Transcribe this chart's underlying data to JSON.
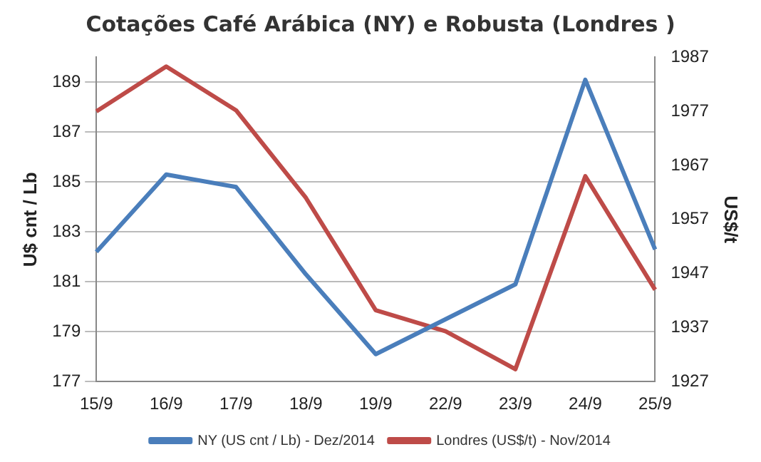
{
  "chart_data": {
    "type": "line",
    "title": "Cotações Café Arábica (NY) e Robusta (Londres )",
    "categories": [
      "15/9",
      "16/9",
      "17/9",
      "18/9",
      "19/9",
      "22/9",
      "23/9",
      "24/9",
      "25/9"
    ],
    "series": [
      {
        "name": "NY (US cnt / Lb) - Dez/2014",
        "color": "#4a7ebb",
        "values": [
          182.2,
          185.3,
          184.8,
          181.3,
          178.1,
          179.5,
          180.9,
          189.1,
          182.3
        ]
      },
      {
        "name": "Londres (US$/t) - Nov/2014",
        "color": "#be4b48",
        "axis": "y2",
        "values": [
          1977,
          1985.3,
          1977.2,
          1961,
          1940.2,
          1936.3,
          1929.3,
          1965,
          1944
        ]
      }
    ],
    "ylabel": "U$ cnt / Lb",
    "y2label": "US$/t",
    "ylim": [
      177,
      190
    ],
    "yticks": [
      177,
      179,
      181,
      183,
      185,
      187,
      189
    ],
    "y2lim": [
      1927,
      1987
    ],
    "y2ticks": [
      1927,
      1937,
      1947,
      1957,
      1967,
      1977,
      1987
    ],
    "grid": "y",
    "legend": "bottom",
    "marker": "none",
    "line_style": "solid"
  }
}
